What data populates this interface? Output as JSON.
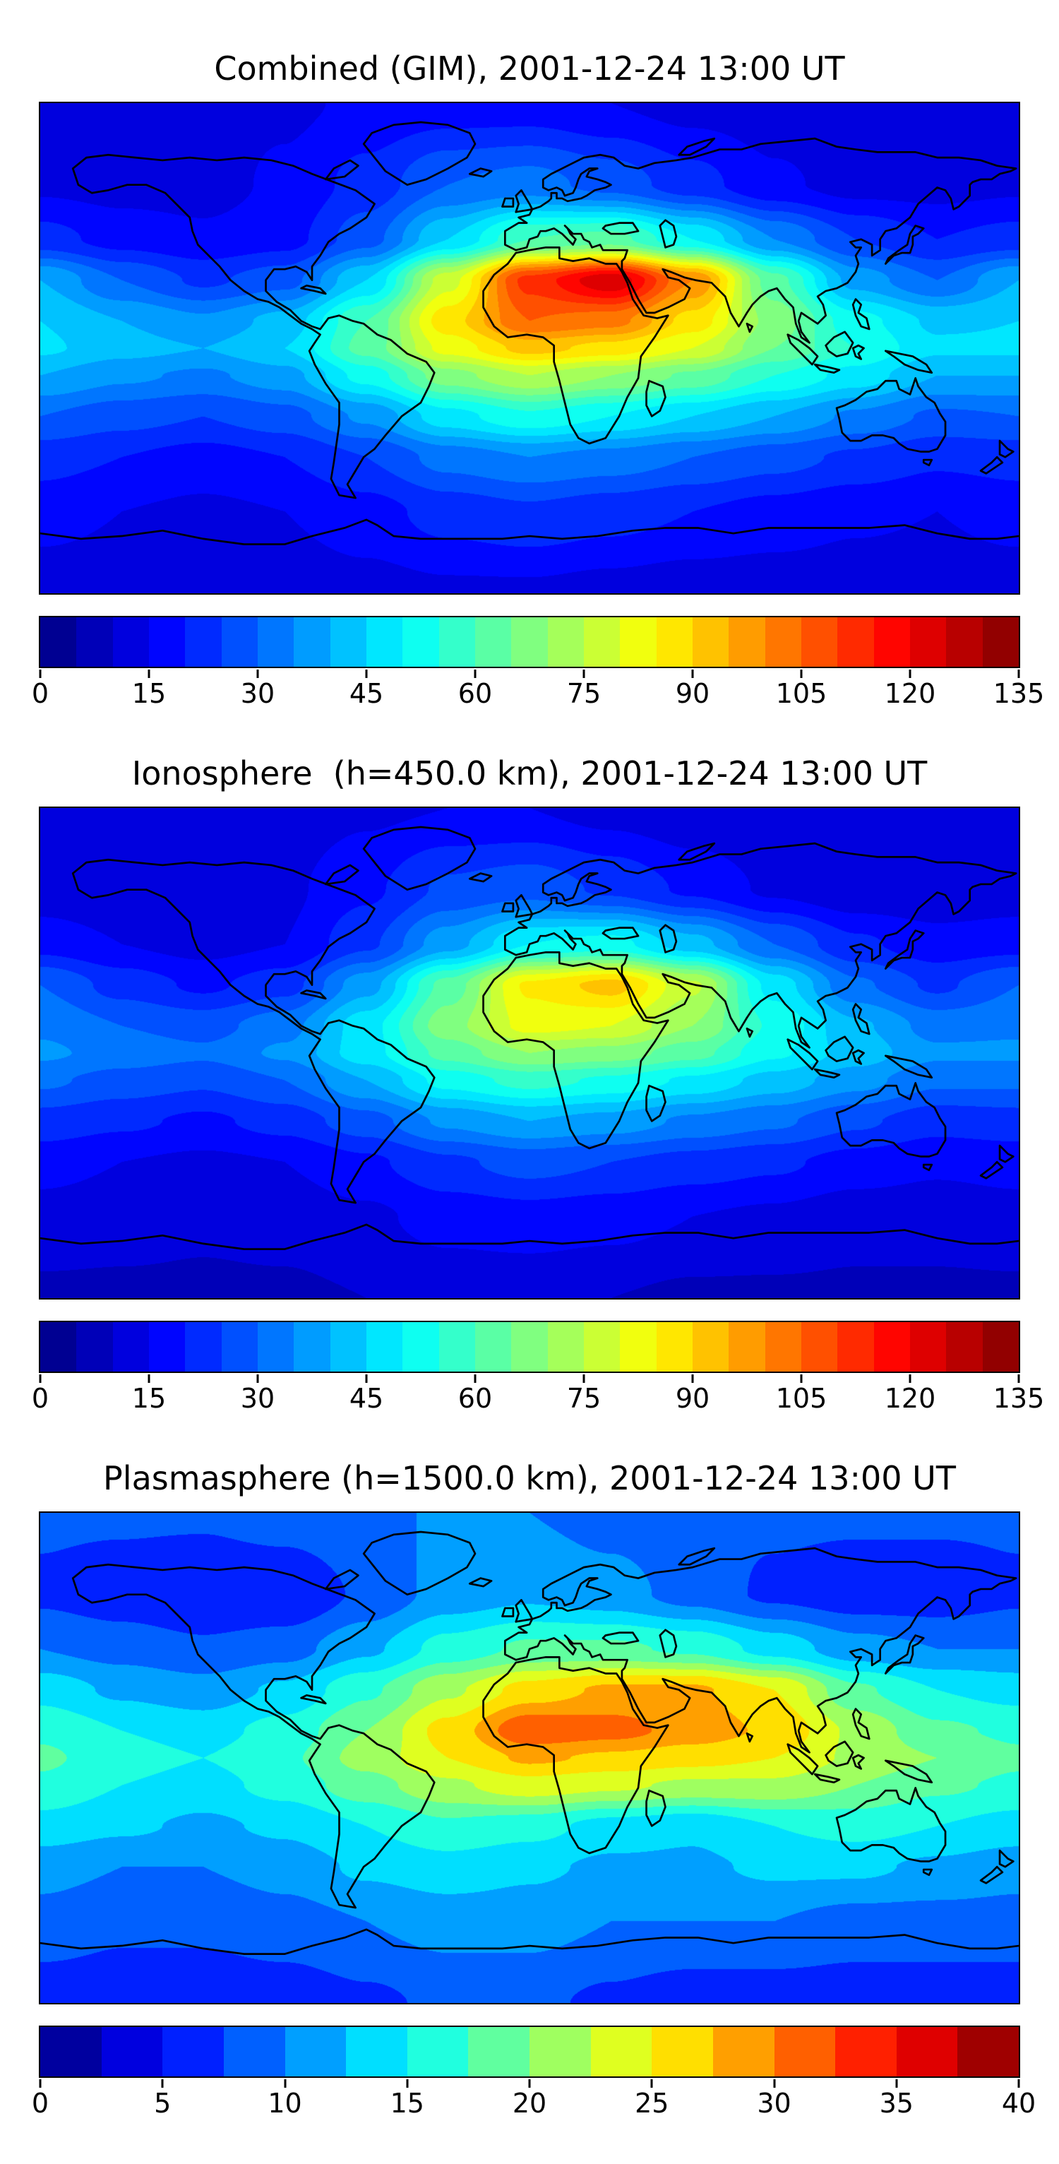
{
  "figure": {
    "panel_count": 3,
    "colors": {
      "background": "#ffffff",
      "coastline": "#000000",
      "colormap_low": "#00007f",
      "colormap_high": "#7f0000"
    }
  },
  "chart_data": [
    {
      "type": "heatmap",
      "title": "Combined (GIM), 2001-12-24 13:00 UT",
      "layer": "Combined (GIM)",
      "datetime_label": "2001-12-24 13:00 UT",
      "projection": "equirectangular",
      "lon_range": [
        -180,
        180
      ],
      "lat_range": [
        -90,
        90
      ],
      "colormap": "jet",
      "vmin": 0,
      "vmax": 135,
      "contour_step": 5,
      "colorbar_ticks": [
        0,
        15,
        30,
        45,
        60,
        75,
        90,
        105,
        120,
        135
      ],
      "legend_position": "bottom",
      "grid": {
        "lons": [
          -180,
          -150,
          -120,
          -90,
          -60,
          -30,
          0,
          30,
          60,
          90,
          120,
          150,
          180
        ],
        "lats": [
          90,
          60,
          40,
          25,
          10,
          0,
          -10,
          -25,
          -40,
          -60,
          -90
        ],
        "values": [
          [
            13,
            13,
            13,
            14,
            16,
            17,
            17,
            15,
            13,
            12,
            11,
            12,
            13
          ],
          [
            14,
            13,
            13,
            16,
            22,
            30,
            32,
            28,
            22,
            16,
            13,
            13,
            14
          ],
          [
            22,
            18,
            16,
            18,
            28,
            45,
            60,
            62,
            50,
            35,
            25,
            20,
            22
          ],
          [
            40,
            30,
            24,
            28,
            45,
            78,
            112,
            124,
            100,
            62,
            38,
            30,
            40
          ],
          [
            45,
            40,
            36,
            42,
            60,
            88,
            105,
            102,
            88,
            68,
            52,
            44,
            45
          ],
          [
            46,
            42,
            40,
            45,
            62,
            82,
            92,
            88,
            80,
            65,
            55,
            46,
            46
          ],
          [
            40,
            36,
            34,
            38,
            52,
            68,
            75,
            70,
            64,
            55,
            48,
            40,
            40
          ],
          [
            30,
            27,
            25,
            28,
            36,
            48,
            54,
            50,
            45,
            40,
            34,
            29,
            30
          ],
          [
            22,
            20,
            18,
            20,
            25,
            32,
            35,
            33,
            30,
            27,
            24,
            21,
            22
          ],
          [
            17,
            15,
            14,
            15,
            18,
            22,
            24,
            22,
            20,
            18,
            16,
            15,
            17
          ],
          [
            12,
            12,
            12,
            12,
            13,
            14,
            14,
            13,
            12,
            12,
            12,
            12,
            12
          ]
        ]
      }
    },
    {
      "type": "heatmap",
      "title": "Ionosphere  (h=450.0 km), 2001-12-24 13:00 UT",
      "layer": "Ionosphere (h=450.0 km)",
      "datetime_label": "2001-12-24 13:00 UT",
      "projection": "equirectangular",
      "lon_range": [
        -180,
        180
      ],
      "lat_range": [
        -90,
        90
      ],
      "colormap": "jet",
      "vmin": 0,
      "vmax": 135,
      "contour_step": 5,
      "colorbar_ticks": [
        0,
        15,
        30,
        45,
        60,
        75,
        90,
        105,
        120,
        135
      ],
      "legend_position": "bottom",
      "grid": {
        "lons": [
          -180,
          -150,
          -120,
          -90,
          -60,
          -30,
          0,
          30,
          60,
          90,
          120,
          150,
          180
        ],
        "lats": [
          90,
          60,
          40,
          25,
          10,
          0,
          -10,
          -25,
          -40,
          -60,
          -90
        ],
        "values": [
          [
            11,
            11,
            11,
            12,
            14,
            15,
            15,
            13,
            11,
            10,
            10,
            10,
            11
          ],
          [
            12,
            11,
            11,
            14,
            19,
            26,
            28,
            24,
            19,
            14,
            11,
            11,
            12
          ],
          [
            18,
            15,
            13,
            15,
            24,
            38,
            50,
            52,
            42,
            30,
            21,
            17,
            18
          ],
          [
            30,
            23,
            19,
            23,
            38,
            62,
            86,
            92,
            76,
            48,
            31,
            24,
            30
          ],
          [
            34,
            30,
            28,
            33,
            48,
            68,
            82,
            80,
            70,
            54,
            41,
            33,
            34
          ],
          [
            36,
            33,
            31,
            36,
            48,
            62,
            70,
            68,
            62,
            51,
            43,
            36,
            36
          ],
          [
            31,
            28,
            26,
            30,
            40,
            52,
            57,
            54,
            49,
            43,
            37,
            31,
            31
          ],
          [
            23,
            21,
            19,
            22,
            28,
            36,
            40,
            38,
            34,
            31,
            26,
            22,
            23
          ],
          [
            17,
            15,
            14,
            15,
            19,
            24,
            27,
            25,
            23,
            21,
            18,
            16,
            17
          ],
          [
            13,
            12,
            11,
            12,
            14,
            17,
            18,
            17,
            15,
            14,
            12,
            12,
            13
          ],
          [
            9,
            9,
            9,
            9,
            10,
            11,
            11,
            10,
            9,
            9,
            9,
            9,
            9
          ]
        ]
      }
    },
    {
      "type": "heatmap",
      "title": "Plasmasphere (h=1500.0 km), 2001-12-24 13:00 UT",
      "layer": "Plasmasphere (h=1500.0 km)",
      "datetime_label": "2001-12-24 13:00 UT",
      "projection": "equirectangular",
      "lon_range": [
        -180,
        180
      ],
      "lat_range": [
        -90,
        90
      ],
      "colormap": "jet",
      "vmin": 0,
      "vmax": 40,
      "contour_step": 2.5,
      "colorbar_ticks": [
        0,
        5,
        10,
        15,
        20,
        25,
        30,
        35,
        40
      ],
      "legend_position": "bottom",
      "grid": {
        "lons": [
          -180,
          -150,
          -120,
          -90,
          -60,
          -30,
          0,
          30,
          60,
          90,
          120,
          150,
          180
        ],
        "lats": [
          90,
          60,
          40,
          25,
          10,
          0,
          -10,
          -25,
          -40,
          -60,
          -90
        ],
        "values": [
          [
            8,
            8,
            8,
            9,
            10,
            10,
            10,
            9,
            8,
            8,
            8,
            8,
            8
          ],
          [
            7,
            6,
            5,
            5,
            8,
            11,
            12,
            11,
            9,
            7,
            6,
            6,
            7
          ],
          [
            10,
            9,
            8,
            9,
            12,
            16,
            18,
            18,
            17,
            14,
            11,
            10,
            10
          ],
          [
            14,
            12,
            11,
            13,
            17,
            22,
            26,
            28,
            28,
            25,
            18,
            15,
            14
          ],
          [
            17,
            15,
            14,
            16,
            20,
            26,
            32,
            31,
            29,
            27,
            22,
            18,
            17
          ],
          [
            18,
            16,
            15,
            17,
            21,
            25,
            28,
            27,
            26,
            25,
            22,
            20,
            18
          ],
          [
            17,
            15,
            14,
            16,
            19,
            22,
            24,
            23,
            22,
            22,
            20,
            18,
            17
          ],
          [
            14,
            13,
            12,
            13,
            15,
            17,
            16,
            14,
            13,
            15,
            16,
            15,
            14
          ],
          [
            11,
            10,
            10,
            11,
            13,
            14,
            13,
            12,
            12,
            13,
            13,
            12,
            11
          ],
          [
            9,
            8,
            8,
            9,
            10,
            11,
            11,
            10,
            10,
            10,
            9,
            9,
            9
          ],
          [
            6,
            6,
            6,
            6,
            7,
            8,
            8,
            7,
            6,
            6,
            6,
            6,
            6
          ]
        ]
      }
    }
  ]
}
